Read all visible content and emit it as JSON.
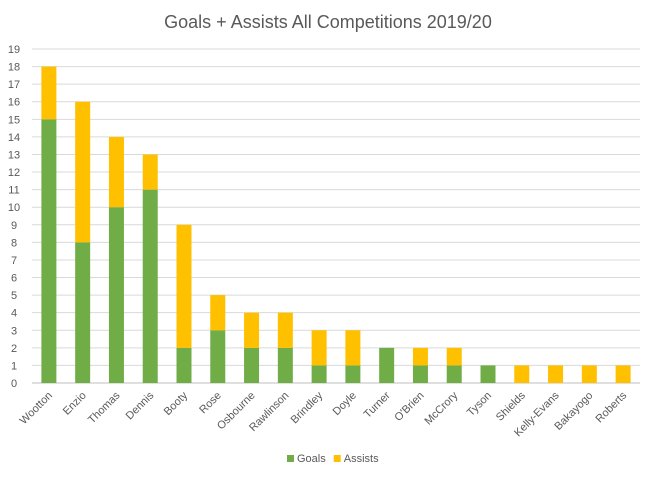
{
  "chart_data": {
    "type": "bar",
    "stacked": true,
    "title": "Goals + Assists All Competitions 2019/20",
    "xlabel": "",
    "ylabel": "",
    "ylim": [
      0,
      19
    ],
    "yticks": [
      0,
      1,
      2,
      3,
      4,
      5,
      6,
      7,
      8,
      9,
      10,
      11,
      12,
      13,
      14,
      15,
      16,
      17,
      18,
      19
    ],
    "grid": true,
    "legend": "bottom",
    "categories": [
      "Wootton",
      "Enzio",
      "Thomas",
      "Dennis",
      "Booty",
      "Rose",
      "Osbourne",
      "Rawlinson",
      "Brindley",
      "Doyle",
      "Turner",
      "O'Brien",
      "McCrory",
      "Tyson",
      "Shields",
      "Kelly-Evans",
      "Bakayogo",
      "Roberts"
    ],
    "series": [
      {
        "name": "Goals",
        "color": "#70AD47",
        "values": [
          15,
          8,
          10,
          11,
          2,
          3,
          2,
          2,
          1,
          1,
          2,
          1,
          1,
          1,
          0,
          0,
          0,
          0
        ]
      },
      {
        "name": "Assists",
        "color": "#FFC000",
        "values": [
          3,
          8,
          4,
          2,
          7,
          2,
          2,
          2,
          2,
          2,
          0,
          1,
          1,
          0,
          1,
          1,
          1,
          1
        ]
      }
    ]
  }
}
